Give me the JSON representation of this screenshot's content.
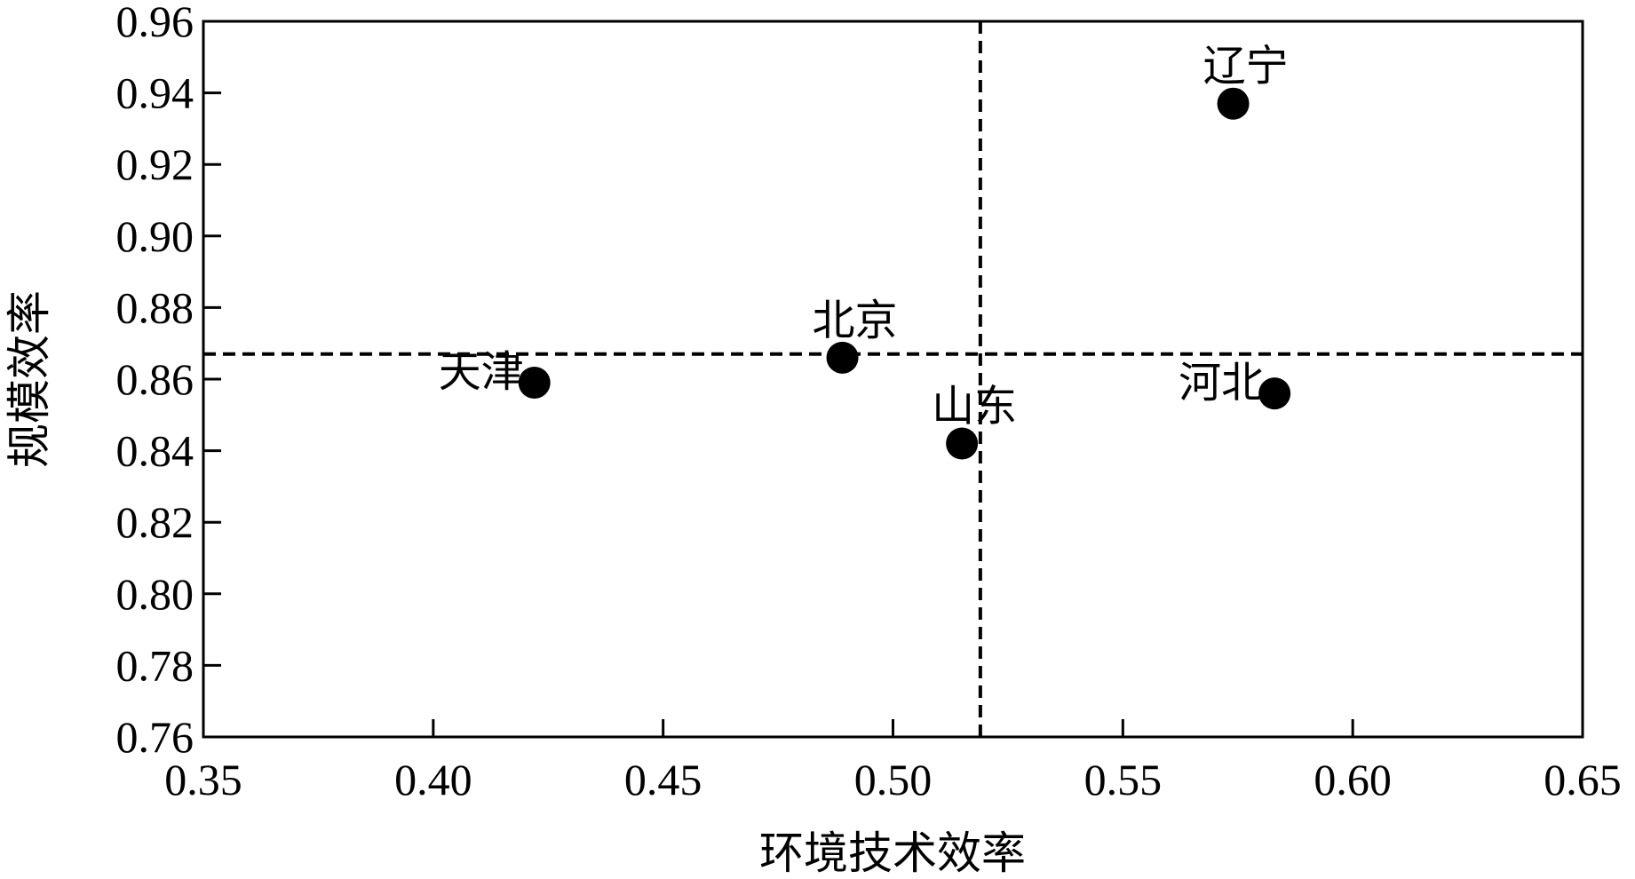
{
  "chart_data": {
    "type": "scatter",
    "title": "",
    "xlabel": "环境技术效率",
    "ylabel": "规模效率",
    "xlim": [
      0.35,
      0.65
    ],
    "ylim": [
      0.76,
      0.96
    ],
    "xticks": [
      "0.35",
      "0.40",
      "0.45",
      "0.50",
      "0.55",
      "0.60",
      "0.65"
    ],
    "yticks": [
      "0.76",
      "0.78",
      "0.80",
      "0.82",
      "0.84",
      "0.86",
      "0.88",
      "0.90",
      "0.92",
      "0.94",
      "0.96"
    ],
    "grid": false,
    "reference_lines": {
      "x": 0.519,
      "y": 0.867,
      "style": "dashed"
    },
    "points": [
      {
        "label": "辽宁",
        "x": 0.574,
        "y": 0.937,
        "label_pos": "above"
      },
      {
        "label": "北京",
        "x": 0.489,
        "y": 0.866,
        "label_pos": "above"
      },
      {
        "label": "天津",
        "x": 0.422,
        "y": 0.859,
        "label_pos": "left"
      },
      {
        "label": "山东",
        "x": 0.515,
        "y": 0.842,
        "label_pos": "above"
      },
      {
        "label": "河北",
        "x": 0.583,
        "y": 0.856,
        "label_pos": "left"
      }
    ],
    "colors": {
      "marker": "#000000",
      "axis": "#000000",
      "reference": "#000000"
    }
  }
}
